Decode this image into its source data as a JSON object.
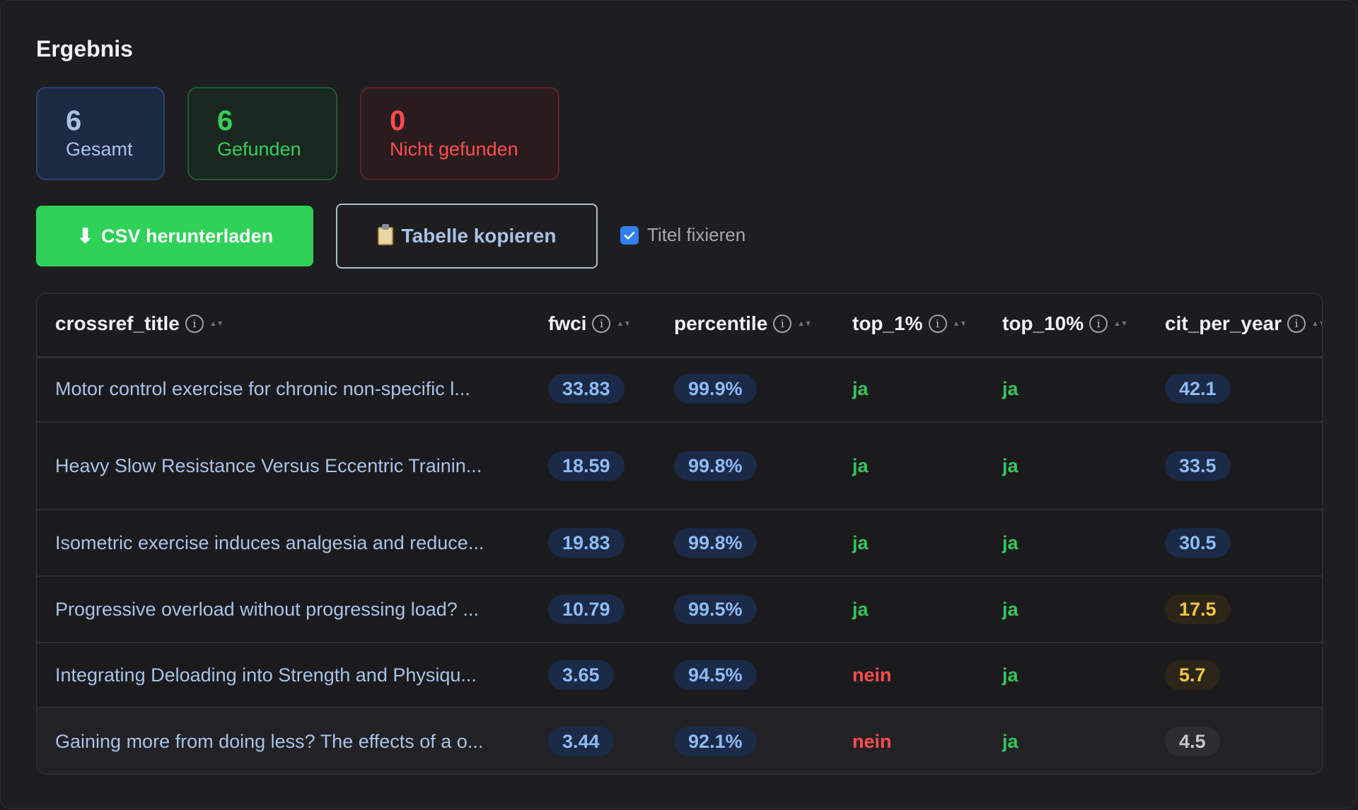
{
  "heading": "Ergebnis",
  "stats": {
    "total": {
      "value": "6",
      "label": "Gesamt"
    },
    "found": {
      "value": "6",
      "label": "Gefunden"
    },
    "not_found": {
      "value": "0",
      "label": "Nicht gefunden"
    }
  },
  "actions": {
    "csv_label": "CSV herunterladen",
    "copy_label": "Tabelle kopieren",
    "fix_title_label": "Titel fixieren",
    "fix_title_checked": true
  },
  "table": {
    "columns": [
      "crossref_title",
      "fwci",
      "percentile",
      "top_1%",
      "top_10%",
      "cit_per_year"
    ],
    "rows": [
      {
        "title": "Motor control exercise for chronic non-specific l...",
        "fwci": "33.83",
        "percentile": "99.9%",
        "top1": "ja",
        "top10": "ja",
        "cit": "42.1"
      },
      {
        "title": "Heavy Slow Resistance Versus Eccentric Trainin...",
        "fwci": "18.59",
        "percentile": "99.8%",
        "top1": "ja",
        "top10": "ja",
        "cit": "33.5"
      },
      {
        "title": "Isometric exercise induces analgesia and reduce...",
        "fwci": "19.83",
        "percentile": "99.8%",
        "top1": "ja",
        "top10": "ja",
        "cit": "30.5"
      },
      {
        "title": "Progressive overload without progressing load? ...",
        "fwci": "10.79",
        "percentile": "99.5%",
        "top1": "ja",
        "top10": "ja",
        "cit": "17.5"
      },
      {
        "title": "Integrating Deloading into Strength and Physiqu...",
        "fwci": "3.65",
        "percentile": "94.5%",
        "top1": "nein",
        "top10": "ja",
        "cit": "5.7"
      },
      {
        "title": "Gaining more from doing less? The effects of a o...",
        "fwci": "3.44",
        "percentile": "92.1%",
        "top1": "nein",
        "top10": "ja",
        "cit": "4.5"
      }
    ]
  }
}
